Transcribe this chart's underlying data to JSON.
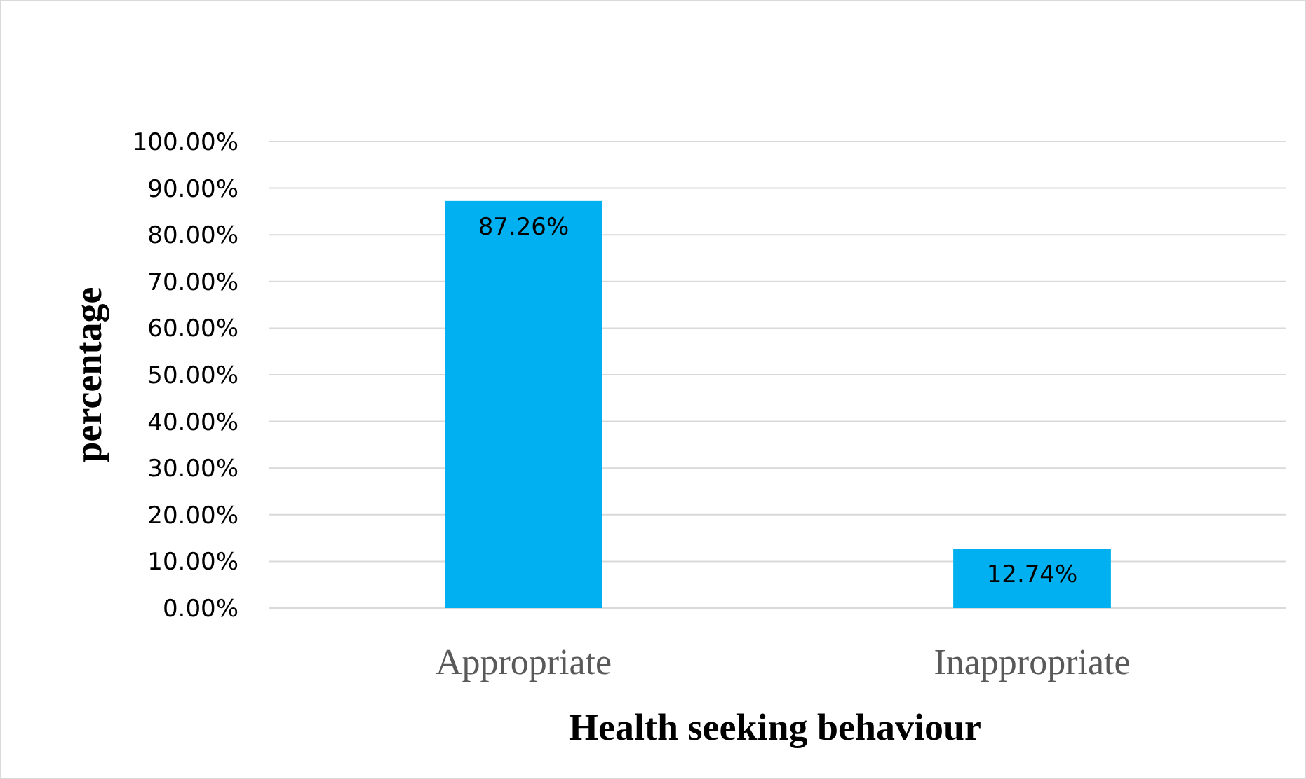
{
  "chart_data": {
    "type": "bar",
    "xlabel": "Health seeking  behaviour",
    "ylabel": "percentage",
    "categories": [
      "Appropriate",
      "Inappropriate"
    ],
    "values": [
      87.26,
      12.74
    ],
    "color": "#00b0f0",
    "value_labels": [
      "87.26%",
      "12.74%"
    ],
    "ylim": [
      0,
      100
    ],
    "yticks": [
      {
        "value": 0,
        "label": "0.00%"
      },
      {
        "value": 10,
        "label": "10.00%"
      },
      {
        "value": 20,
        "label": "20.00%"
      },
      {
        "value": 30,
        "label": "30.00%"
      },
      {
        "value": 40,
        "label": "40.00%"
      },
      {
        "value": 50,
        "label": "50.00%"
      },
      {
        "value": 60,
        "label": "60.00%"
      },
      {
        "value": 70,
        "label": "70.00%"
      },
      {
        "value": 80,
        "label": "80.00%"
      },
      {
        "value": 90,
        "label": "90.00%"
      },
      {
        "value": 100,
        "label": "100.00%"
      }
    ],
    "grid": "y"
  }
}
